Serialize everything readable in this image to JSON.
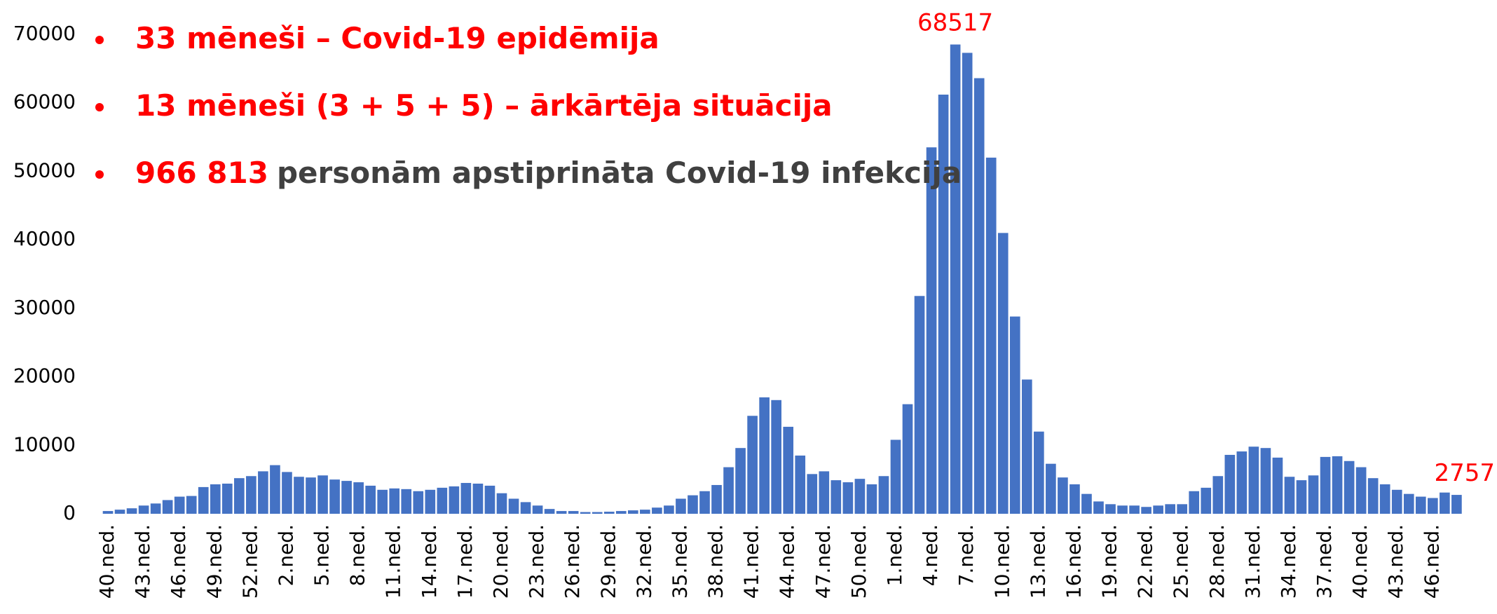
{
  "chart_data": {
    "type": "bar",
    "bullets": [
      [
        {
          "text": "33 mēneši – Covid-19 epidēmija",
          "color": "#ff0000"
        }
      ],
      [
        {
          "text": "13 mēneši (3 + 5 + 5) – ārkārtēja situācija",
          "color": "#ff0000"
        }
      ],
      [
        {
          "text": "966 813",
          "color": "#ff0000"
        },
        {
          "text": "personām apstiprināta Covid-19 infekcija",
          "color": "#404040"
        }
      ]
    ],
    "bullet_color": "#ff0000",
    "categories": [
      "40.ned.",
      null,
      null,
      "43.ned.",
      null,
      null,
      "46.ned.",
      null,
      null,
      "49.ned.",
      null,
      null,
      "52.ned.",
      null,
      null,
      "2.ned.",
      null,
      null,
      "5.ned.",
      null,
      null,
      "8.ned.",
      null,
      null,
      "11.ned.",
      null,
      null,
      "14.ned.",
      null,
      null,
      "17.ned.",
      null,
      null,
      "20.ned.",
      null,
      null,
      "23.ned.",
      null,
      null,
      "26.ned.",
      null,
      null,
      "29.ned.",
      null,
      null,
      "32.ned.",
      null,
      null,
      "35.ned.",
      null,
      null,
      "38.ned.",
      null,
      null,
      "41.ned.",
      null,
      null,
      "44.ned.",
      null,
      null,
      "47.ned.",
      null,
      null,
      "50.ned.",
      null,
      null,
      "1.ned.",
      null,
      null,
      "4.ned.",
      null,
      null,
      "7.ned.",
      null,
      null,
      "10.ned.",
      null,
      null,
      "13.ned.",
      null,
      null,
      "16.ned.",
      null,
      null,
      "19.ned.",
      null,
      null,
      "22.ned.",
      null,
      null,
      "25.ned.",
      null,
      null,
      "28.ned.",
      null,
      null,
      "31.ned.",
      null,
      null,
      "34.ned.",
      null,
      null,
      "37.ned.",
      null,
      null,
      "40.ned.",
      null,
      null,
      "43.ned.",
      null,
      null,
      "46.ned.",
      null,
      null
    ],
    "series": [
      {
        "color": "#4472c4",
        "values": [
          400,
          600,
          800,
          1200,
          1500,
          2000,
          2500,
          2600,
          3900,
          4300,
          4400,
          5200,
          5500,
          6200,
          7100,
          6100,
          5400,
          5300,
          5600,
          5000,
          4800,
          4600,
          4100,
          3500,
          3700,
          3600,
          3300,
          3500,
          3800,
          4000,
          4500,
          4400,
          4100,
          3000,
          2200,
          1700,
          1200,
          700,
          400,
          400,
          250,
          250,
          300,
          400,
          500,
          600,
          900,
          1200,
          2200,
          2700,
          3300,
          4200,
          6800,
          9600,
          14300,
          17000,
          16600,
          12700,
          8500,
          5800,
          6200,
          4900,
          4600,
          5100,
          4300,
          5500,
          10800,
          16000,
          31800,
          53500,
          61200,
          68517,
          67300,
          63600,
          52000,
          41000,
          28800,
          19600,
          12000,
          7300,
          5300,
          4300,
          2900,
          1800,
          1400,
          1200,
          1200,
          1000,
          1200,
          1400,
          1400,
          3300,
          3800,
          5500,
          8600,
          9100,
          9800,
          9600,
          8200,
          5400,
          4900,
          5600,
          8300,
          8400,
          7700,
          6800,
          5200,
          4300,
          3500,
          2900,
          2500,
          2300,
          3100,
          2757
        ]
      }
    ],
    "labeled_points": [
      71,
      113
    ],
    "ylim": [
      0,
      70000
    ],
    "yticks": [
      0,
      10000,
      20000,
      30000,
      40000,
      50000,
      60000,
      70000
    ],
    "grid": false
  }
}
